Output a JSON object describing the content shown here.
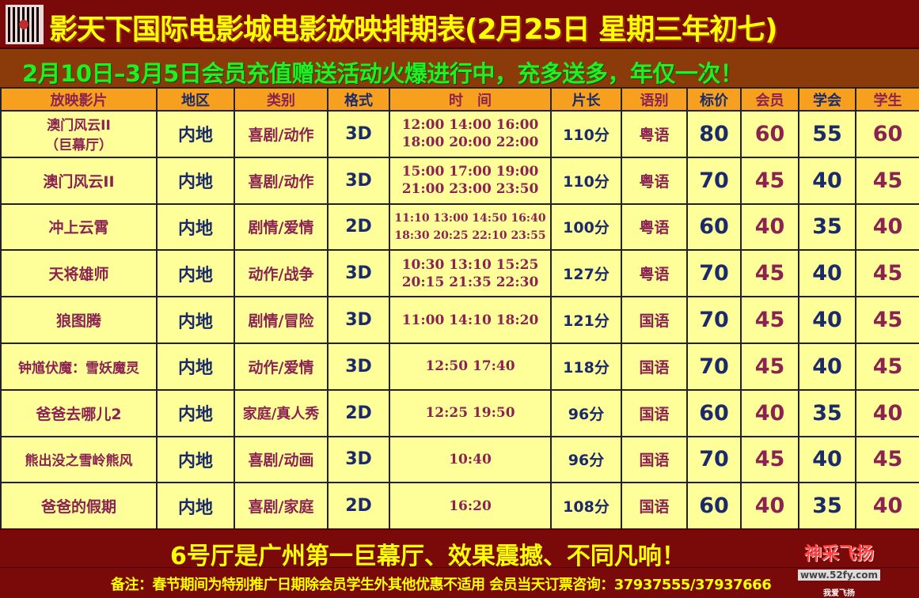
{
  "title": "影天下国际电影城电影放映排期表(2月25日 星期三年初七)",
  "promo": "2月10日–3月5日会员充值赠送活动火爆进行中，充多送多，年仅一次！",
  "headers": [
    "放映影片",
    "地区",
    "类别",
    "格式",
    "时　间",
    "片长",
    "语别",
    "标价",
    "会员",
    "学会",
    "学生"
  ],
  "rows": [
    {
      "film": "澳门风云II\n（巨幕厅）",
      "region": "内地",
      "genre": "喜剧/动作",
      "format": "3D",
      "times": [
        "12:00 14:00 16:00",
        "18:00 20:00 22:00"
      ],
      "length": "110分",
      "lang": "粤语",
      "price": "80",
      "member": "60",
      "assoc": "55",
      "student": "60"
    },
    {
      "film": "澳门风云II",
      "region": "内地",
      "genre": "喜剧/动作",
      "format": "3D",
      "times": [
        "15:00 17:00 19:00",
        "21:00 23:00 23:50"
      ],
      "length": "110分",
      "lang": "粤语",
      "price": "70",
      "member": "45",
      "assoc": "40",
      "student": "45"
    },
    {
      "film": "冲上云霄",
      "region": "内地",
      "genre": "剧情/爱情",
      "format": "2D",
      "times": [
        "11:10 13:00 14:50 16:40",
        "18:30 20:25  22:10 23:55"
      ],
      "length": "100分",
      "lang": "粤语",
      "price": "60",
      "member": "40",
      "assoc": "35",
      "student": "40"
    },
    {
      "film": "天将雄师",
      "region": "内地",
      "genre": "动作/战争",
      "format": "3D",
      "times": [
        "10:30 13:10 15:25",
        "20:15 21:35  22:30"
      ],
      "length": "127分",
      "lang": "粤语",
      "price": "70",
      "member": "45",
      "assoc": "40",
      "student": "45"
    },
    {
      "film": "狼图腾",
      "region": "内地",
      "genre": "剧情/冒险",
      "format": "3D",
      "times": [
        "11:00 14:10 18:20"
      ],
      "length": "121分",
      "lang": "国语",
      "price": "70",
      "member": "45",
      "assoc": "40",
      "student": "45"
    },
    {
      "film": "钟馗伏魔：雪妖魔灵",
      "region": "内地",
      "genre": "动作/爱情",
      "format": "3D",
      "times": [
        "12:50 17:40"
      ],
      "length": "118分",
      "lang": "国语",
      "price": "70",
      "member": "45",
      "assoc": "40",
      "student": "45"
    },
    {
      "film": "爸爸去哪儿2",
      "region": "内地",
      "genre": "家庭/真人秀",
      "format": "2D",
      "times": [
        "12:25 19:50"
      ],
      "length": "96分",
      "lang": "国语",
      "price": "60",
      "member": "40",
      "assoc": "35",
      "student": "40"
    },
    {
      "film": "熊出没之雪岭熊风",
      "region": "内地",
      "genre": "喜剧/动画",
      "format": "3D",
      "times": [
        "10:40"
      ],
      "length": "96分",
      "lang": "国语",
      "price": "70",
      "member": "45",
      "assoc": "40",
      "student": "45"
    },
    {
      "film": "爸爸的假期",
      "region": "内地",
      "genre": "喜剧/家庭",
      "format": "2D",
      "times": [
        "16:20"
      ],
      "length": "108分",
      "lang": "国语",
      "price": "60",
      "member": "40",
      "assoc": "35",
      "student": "40"
    }
  ],
  "slogan": "6号厅是广州第一巨幕厅、效果震撼、不同凡响！",
  "notes": "备注：春节期间为特别推广日期除会员学生外其他优惠不适用 会员当天订票咨询：37937555/37937666",
  "watermark": {
    "main": "神采飞扬",
    "url": "www.52fy.com",
    "sub": "我爱飞扬"
  },
  "colors": {
    "title_bg": "#7a0a0a",
    "title_text": "#ffff00",
    "promo_text": "#22ee22",
    "header_bg": "#f7a020",
    "cell_bg": "#ffff99"
  }
}
